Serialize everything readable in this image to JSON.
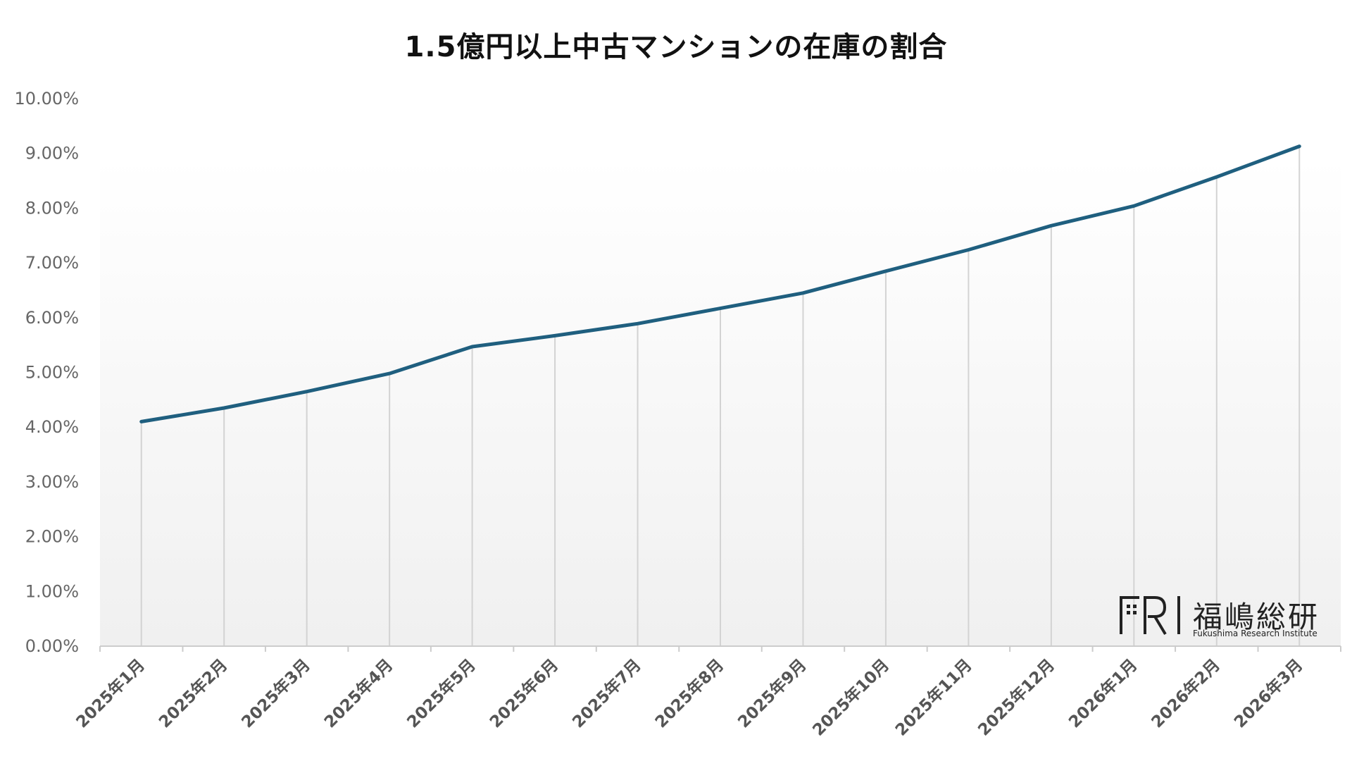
{
  "chart_data": {
    "type": "line",
    "title": "1.5億円以上中古マンションの在庫の割合",
    "xlabel": "",
    "ylabel": "",
    "categories": [
      "2025年1月",
      "2025年2月",
      "2025年3月",
      "2025年4月",
      "2025年5月",
      "2025年6月",
      "2025年7月",
      "2025年8月",
      "2025年9月",
      "2025年10月",
      "2025年11月",
      "2025年12月",
      "2026年1月",
      "2026年2月",
      "2026年3月"
    ],
    "series": [
      {
        "values": [
          4.1,
          4.35,
          4.65,
          4.98,
          5.47,
          5.67,
          5.89,
          6.17,
          6.45,
          6.85,
          7.24,
          7.68,
          8.04,
          8.57,
          9.13
        ],
        "color": "#1f5f7f"
      }
    ],
    "ylim": [
      0,
      10
    ],
    "y_ticks": [
      "0.00%",
      "1.00%",
      "2.00%",
      "3.00%",
      "4.00%",
      "5.00%",
      "6.00%",
      "7.00%",
      "8.00%",
      "9.00%",
      "10.00%"
    ],
    "drop_lines": true,
    "background": "gradient white-to-light-gray"
  },
  "logo": {
    "mark": "FRI",
    "name": "福嶋総研",
    "subtitle": "Fukushima Research Institute"
  }
}
